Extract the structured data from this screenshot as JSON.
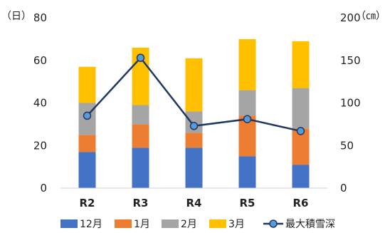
{
  "chart_data": {
    "type": "bar",
    "stacked": true,
    "categories": [
      "R2",
      "R3",
      "R4",
      "R5",
      "R6"
    ],
    "series": [
      {
        "name": "12月",
        "values": [
          17,
          19,
          19,
          15,
          11
        ],
        "color": "#4472C4"
      },
      {
        "name": "1月",
        "values": [
          8,
          11,
          7,
          19,
          17
        ],
        "color": "#ED7D31"
      },
      {
        "name": "2月",
        "values": [
          15,
          9,
          10,
          12,
          19
        ],
        "color": "#A5A5A5"
      },
      {
        "name": "3月",
        "values": [
          17,
          27,
          25,
          24,
          22
        ],
        "color": "#FFC000"
      }
    ],
    "line_series": {
      "name": "最大積雪深",
      "values": [
        85,
        153,
        73,
        81,
        67
      ],
      "color": "#203864",
      "axis": "right"
    },
    "left_axis": {
      "unit": "（日）",
      "ylim": [
        0,
        80
      ],
      "ticks": [
        "0",
        "20",
        "40",
        "60",
        "80"
      ]
    },
    "right_axis": {
      "unit": "（㎝）",
      "ylim": [
        0,
        200
      ],
      "ticks": [
        "0",
        "50",
        "100",
        "150",
        "200"
      ]
    },
    "title": "",
    "grid": false,
    "legend_position": "bottom"
  }
}
